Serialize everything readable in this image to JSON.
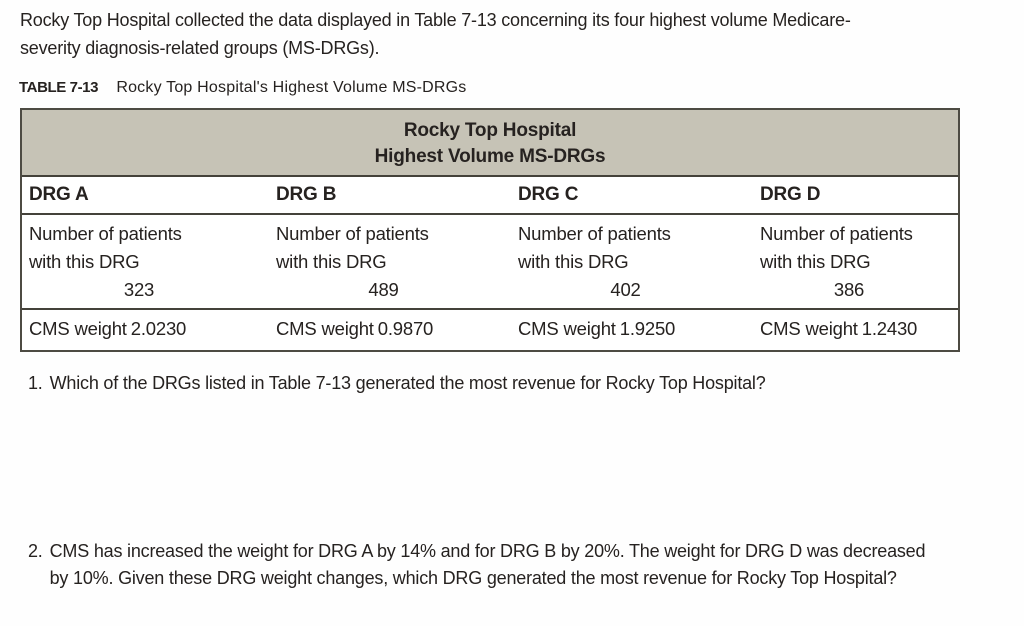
{
  "intro": {
    "line1": "Rocky Top Hospital collected the data displayed in Table 7-13 concerning its four highest volume Medicare-",
    "line2": "severity diagnosis-related groups (MS-DRGs)."
  },
  "caption": {
    "label": "TABLE 7-13",
    "title": "Rocky Top Hospital's Highest Volume MS-DRGs"
  },
  "table": {
    "header": {
      "line1": "Rocky Top Hospital",
      "line2": "Highest Volume MS-DRGs"
    },
    "columns": [
      {
        "label": "DRG A",
        "patients_line1": "Number of patients",
        "patients_line2": "with this DRG",
        "patients_count": "323",
        "cms_label": "CMS weight",
        "cms_value": "2.0230"
      },
      {
        "label": "DRG B",
        "patients_line1": "Number of patients",
        "patients_line2": "with this DRG",
        "patients_count": "489",
        "cms_label": "CMS weight",
        "cms_value": "0.9870"
      },
      {
        "label": "DRG C",
        "patients_line1": "Number of patients",
        "patients_line2": "with this DRG",
        "patients_count": "402",
        "cms_label": "CMS weight",
        "cms_value": "1.9250"
      },
      {
        "label": "DRG D",
        "patients_line1": "Number of patients",
        "patients_line2": "with this DRG",
        "patients_count": "386",
        "cms_label": "CMS weight",
        "cms_value": "1.2430"
      }
    ]
  },
  "questions": [
    {
      "number": "1.",
      "lines": [
        "Which of the DRGs listed in Table 7-13 generated the most revenue for Rocky Top Hospital?"
      ]
    },
    {
      "number": "2.",
      "lines": [
        "CMS has increased the weight for DRG A by 14% and for DRG B by 20%. The weight for DRG D was decreased",
        "by 10%. Given these DRG weight changes, which DRG generated the most revenue for Rocky Top Hospital?"
      ]
    }
  ],
  "colors": {
    "header_bg": "#c6c3b6",
    "border": "#44423a",
    "text": "#262220"
  }
}
